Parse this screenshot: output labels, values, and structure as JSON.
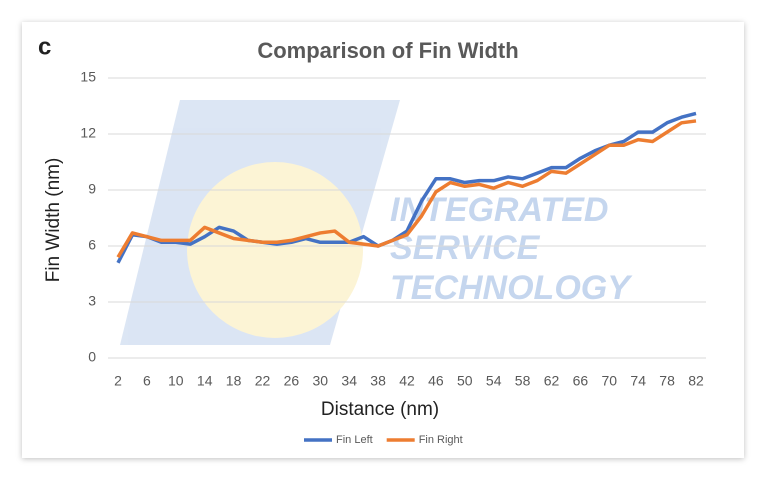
{
  "panel_label": "c",
  "watermark": [
    "INTEGRATED",
    "SERVICE",
    "TECHNOLOGY"
  ],
  "chart_data": {
    "type": "line",
    "title": "Comparison of Fin Width",
    "x_label": "Distance (nm)",
    "y_label": "Fin Width (nm)",
    "x": [
      2,
      4,
      6,
      8,
      10,
      12,
      14,
      16,
      18,
      20,
      22,
      24,
      26,
      28,
      30,
      32,
      34,
      36,
      38,
      40,
      42,
      44,
      46,
      48,
      50,
      52,
      54,
      56,
      58,
      60,
      62,
      64,
      66,
      68,
      70,
      72,
      74,
      76,
      78,
      80,
      82
    ],
    "series": [
      {
        "name": "Fin Left",
        "color": "#4472c4",
        "values": [
          5.1,
          6.6,
          6.5,
          6.2,
          6.2,
          6.1,
          6.5,
          7.0,
          6.8,
          6.3,
          6.2,
          6.1,
          6.2,
          6.4,
          6.2,
          6.2,
          6.2,
          6.5,
          6.0,
          6.3,
          6.8,
          8.4,
          9.6,
          9.6,
          9.4,
          9.5,
          9.5,
          9.7,
          9.6,
          9.9,
          10.2,
          10.2,
          10.7,
          11.1,
          11.4,
          11.6,
          12.1,
          12.1,
          12.6,
          12.9,
          13.1
        ]
      },
      {
        "name": "Fin Right",
        "color": "#ed7d31",
        "values": [
          5.4,
          6.7,
          6.5,
          6.3,
          6.3,
          6.3,
          7.0,
          6.7,
          6.4,
          6.3,
          6.2,
          6.2,
          6.3,
          6.5,
          6.7,
          6.8,
          6.2,
          6.1,
          6.0,
          6.3,
          6.6,
          7.6,
          8.9,
          9.4,
          9.2,
          9.3,
          9.1,
          9.4,
          9.2,
          9.5,
          10.0,
          9.9,
          10.4,
          10.9,
          11.4,
          11.4,
          11.7,
          11.6,
          12.1,
          12.6,
          12.7
        ]
      }
    ],
    "xlim": [
      2,
      82
    ],
    "xticks": [
      2,
      6,
      10,
      14,
      18,
      22,
      26,
      30,
      34,
      38,
      42,
      46,
      50,
      54,
      58,
      62,
      66,
      70,
      74,
      78,
      82
    ],
    "ylim": [
      0,
      15
    ],
    "yticks": [
      0,
      3,
      6,
      9,
      12,
      15
    ],
    "grid": true,
    "legend": "bottom"
  }
}
